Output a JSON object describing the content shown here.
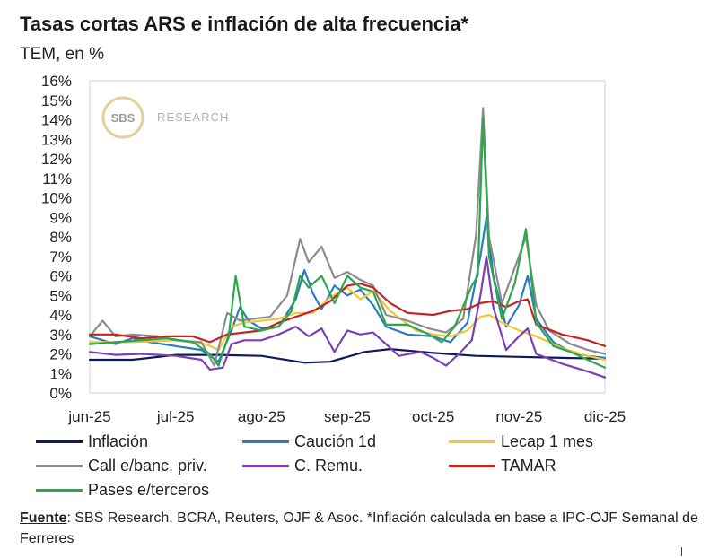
{
  "header": {
    "title": "Tasas cortas ARS e inflación de alta frecuencia*",
    "subtitle": "TEM, en %"
  },
  "watermark": {
    "logo_text": "SBS",
    "text": "RESEARCH"
  },
  "chart_data": {
    "type": "line",
    "ylim": [
      0,
      16
    ],
    "y_ticks": [
      "0%",
      "1%",
      "2%",
      "3%",
      "4%",
      "5%",
      "6%",
      "7%",
      "8%",
      "9%",
      "10%",
      "11%",
      "12%",
      "13%",
      "14%",
      "15%",
      "16%"
    ],
    "x_ticks": [
      "jun-25",
      "jul-25",
      "ago-25",
      "sep-25",
      "oct-25",
      "nov-25",
      "dic-25"
    ],
    "x_range": [
      0,
      6
    ],
    "grid": false,
    "legend_position": "bottom",
    "series": [
      {
        "name": "Inflación",
        "color": "#0d1b5e",
        "points": [
          [
            0,
            1.7
          ],
          [
            0.5,
            1.7
          ],
          [
            1,
            1.95
          ],
          [
            1.5,
            1.95
          ],
          [
            2,
            1.9
          ],
          [
            2.5,
            1.55
          ],
          [
            2.8,
            1.6
          ],
          [
            3.2,
            2.1
          ],
          [
            3.5,
            2.25
          ],
          [
            4,
            2.05
          ],
          [
            4.5,
            1.9
          ],
          [
            5,
            1.85
          ],
          [
            5.5,
            1.8
          ],
          [
            6,
            1.75
          ]
        ]
      },
      {
        "name": "Caución 1d",
        "color": "#2b7bc4",
        "points": [
          [
            0,
            2.9
          ],
          [
            0.3,
            2.5
          ],
          [
            0.5,
            2.8
          ],
          [
            0.7,
            2.6
          ],
          [
            1,
            2.4
          ],
          [
            1.3,
            2.2
          ],
          [
            1.5,
            1.6
          ],
          [
            1.65,
            3.2
          ],
          [
            1.75,
            4.4
          ],
          [
            1.85,
            3.7
          ],
          [
            2,
            3.3
          ],
          [
            2.2,
            3.4
          ],
          [
            2.4,
            4.8
          ],
          [
            2.5,
            6.3
          ],
          [
            2.6,
            5.1
          ],
          [
            2.7,
            4.3
          ],
          [
            2.85,
            5.5
          ],
          [
            3.0,
            5.0
          ],
          [
            3.15,
            5.3
          ],
          [
            3.3,
            4.5
          ],
          [
            3.45,
            3.4
          ],
          [
            3.7,
            3.0
          ],
          [
            4.0,
            2.9
          ],
          [
            4.2,
            2.6
          ],
          [
            4.4,
            3.6
          ],
          [
            4.55,
            7.0
          ],
          [
            4.62,
            9.0
          ],
          [
            4.7,
            6.0
          ],
          [
            4.85,
            3.4
          ],
          [
            5.0,
            4.5
          ],
          [
            5.1,
            6.0
          ],
          [
            5.2,
            3.8
          ],
          [
            5.4,
            2.6
          ],
          [
            5.6,
            2.1
          ],
          [
            5.8,
            1.9
          ],
          [
            6,
            1.8
          ]
        ]
      },
      {
        "name": "Lecap 1 mes",
        "color": "#f5c533",
        "points": [
          [
            0,
            2.6
          ],
          [
            0.5,
            2.6
          ],
          [
            1,
            2.7
          ],
          [
            1.35,
            2.5
          ],
          [
            1.5,
            2.2
          ],
          [
            1.65,
            3.4
          ],
          [
            1.8,
            3.6
          ],
          [
            2,
            3.7
          ],
          [
            2.2,
            3.8
          ],
          [
            2.4,
            4.1
          ],
          [
            2.6,
            4.1
          ],
          [
            2.8,
            4.9
          ],
          [
            3.0,
            5.4
          ],
          [
            3.15,
            4.8
          ],
          [
            3.3,
            5.2
          ],
          [
            3.5,
            4.2
          ],
          [
            3.8,
            3.2
          ],
          [
            4.0,
            3.0
          ],
          [
            4.2,
            2.9
          ],
          [
            4.4,
            3.2
          ],
          [
            4.55,
            3.9
          ],
          [
            4.65,
            4.0
          ],
          [
            4.8,
            3.6
          ],
          [
            5.0,
            3.2
          ],
          [
            5.2,
            2.9
          ],
          [
            5.5,
            2.3
          ],
          [
            5.8,
            1.9
          ],
          [
            6,
            1.7
          ]
        ]
      },
      {
        "name": "Call e/banc. priv.",
        "color": "#8c8c8c",
        "points": [
          [
            0,
            2.9
          ],
          [
            0.15,
            3.7
          ],
          [
            0.3,
            2.9
          ],
          [
            0.5,
            3.0
          ],
          [
            0.8,
            2.9
          ],
          [
            1,
            2.7
          ],
          [
            1.3,
            2.6
          ],
          [
            1.45,
            1.4
          ],
          [
            1.6,
            4.1
          ],
          [
            1.75,
            3.7
          ],
          [
            1.9,
            3.8
          ],
          [
            2.1,
            3.9
          ],
          [
            2.3,
            5.0
          ],
          [
            2.45,
            7.9
          ],
          [
            2.55,
            6.7
          ],
          [
            2.7,
            7.5
          ],
          [
            2.85,
            5.9
          ],
          [
            3.0,
            6.2
          ],
          [
            3.15,
            5.8
          ],
          [
            3.3,
            5.5
          ],
          [
            3.45,
            4.0
          ],
          [
            3.7,
            3.7
          ],
          [
            3.95,
            3.3
          ],
          [
            4.15,
            3.1
          ],
          [
            4.35,
            3.8
          ],
          [
            4.5,
            8.1
          ],
          [
            4.58,
            14.6
          ],
          [
            4.65,
            8.0
          ],
          [
            4.8,
            4.6
          ],
          [
            4.95,
            6.4
          ],
          [
            5.08,
            8.0
          ],
          [
            5.2,
            4.5
          ],
          [
            5.35,
            3.2
          ],
          [
            5.6,
            2.5
          ],
          [
            5.8,
            2.2
          ],
          [
            6,
            2.0
          ]
        ]
      },
      {
        "name": "C. Remu.",
        "color": "#7b3fb6",
        "points": [
          [
            0,
            2.1
          ],
          [
            0.3,
            1.95
          ],
          [
            0.6,
            2.0
          ],
          [
            1.0,
            1.9
          ],
          [
            1.3,
            1.7
          ],
          [
            1.4,
            1.2
          ],
          [
            1.55,
            1.3
          ],
          [
            1.65,
            2.5
          ],
          [
            1.8,
            2.7
          ],
          [
            2.0,
            2.7
          ],
          [
            2.2,
            3.0
          ],
          [
            2.4,
            3.4
          ],
          [
            2.55,
            2.9
          ],
          [
            2.7,
            3.3
          ],
          [
            2.85,
            2.1
          ],
          [
            3.0,
            3.2
          ],
          [
            3.15,
            3.0
          ],
          [
            3.3,
            3.1
          ],
          [
            3.45,
            2.5
          ],
          [
            3.6,
            1.9
          ],
          [
            3.85,
            2.1
          ],
          [
            4.0,
            1.8
          ],
          [
            4.15,
            1.4
          ],
          [
            4.3,
            2.0
          ],
          [
            4.45,
            2.7
          ],
          [
            4.55,
            5.0
          ],
          [
            4.62,
            7.0
          ],
          [
            4.7,
            4.4
          ],
          [
            4.85,
            2.2
          ],
          [
            5.0,
            2.9
          ],
          [
            5.1,
            3.3
          ],
          [
            5.2,
            2.0
          ],
          [
            5.5,
            1.5
          ],
          [
            5.8,
            1.1
          ],
          [
            6,
            0.8
          ]
        ]
      },
      {
        "name": "TAMAR",
        "color": "#c42323",
        "points": [
          [
            0,
            3.0
          ],
          [
            0.3,
            3.0
          ],
          [
            0.6,
            2.8
          ],
          [
            0.9,
            2.9
          ],
          [
            1.2,
            2.9
          ],
          [
            1.4,
            2.6
          ],
          [
            1.6,
            3.0
          ],
          [
            1.8,
            3.1
          ],
          [
            2.0,
            3.2
          ],
          [
            2.2,
            3.6
          ],
          [
            2.4,
            3.9
          ],
          [
            2.6,
            4.2
          ],
          [
            2.8,
            4.7
          ],
          [
            3.0,
            5.5
          ],
          [
            3.15,
            5.6
          ],
          [
            3.3,
            5.4
          ],
          [
            3.5,
            4.6
          ],
          [
            3.7,
            4.1
          ],
          [
            4.0,
            4.0
          ],
          [
            4.2,
            4.2
          ],
          [
            4.4,
            4.3
          ],
          [
            4.55,
            4.6
          ],
          [
            4.7,
            4.7
          ],
          [
            4.85,
            4.4
          ],
          [
            5.0,
            4.7
          ],
          [
            5.1,
            4.8
          ],
          [
            5.2,
            3.5
          ],
          [
            5.5,
            3.0
          ],
          [
            5.8,
            2.7
          ],
          [
            6,
            2.4
          ]
        ]
      },
      {
        "name": "Pases e/terceros",
        "color": "#2aa84a",
        "points": [
          [
            0,
            2.5
          ],
          [
            0.3,
            2.6
          ],
          [
            0.6,
            2.7
          ],
          [
            0.9,
            2.8
          ],
          [
            1.2,
            2.6
          ],
          [
            1.4,
            2.0
          ],
          [
            1.5,
            1.4
          ],
          [
            1.62,
            3.0
          ],
          [
            1.7,
            6.0
          ],
          [
            1.8,
            3.4
          ],
          [
            2.0,
            3.2
          ],
          [
            2.2,
            3.4
          ],
          [
            2.35,
            4.2
          ],
          [
            2.45,
            6.0
          ],
          [
            2.55,
            5.4
          ],
          [
            2.7,
            6.0
          ],
          [
            2.85,
            4.6
          ],
          [
            3.0,
            6.0
          ],
          [
            3.15,
            5.4
          ],
          [
            3.3,
            5.2
          ],
          [
            3.45,
            3.5
          ],
          [
            3.7,
            3.5
          ],
          [
            3.95,
            3.0
          ],
          [
            4.1,
            2.6
          ],
          [
            4.25,
            3.4
          ],
          [
            4.45,
            5.5
          ],
          [
            4.52,
            6.0
          ],
          [
            4.58,
            14.1
          ],
          [
            4.65,
            7.0
          ],
          [
            4.8,
            3.8
          ],
          [
            4.95,
            5.6
          ],
          [
            5.08,
            8.4
          ],
          [
            5.2,
            3.6
          ],
          [
            5.4,
            2.4
          ],
          [
            5.6,
            2.1
          ],
          [
            5.85,
            1.6
          ],
          [
            6,
            1.3
          ]
        ]
      }
    ]
  },
  "legend": {
    "items": [
      {
        "label": "Inflación",
        "color": "#0d1b5e"
      },
      {
        "label": "Caución 1d",
        "color": "#2b7bc4"
      },
      {
        "label": "Lecap 1 mes",
        "color": "#f5c533"
      },
      {
        "label": "Call e/banc. priv.",
        "color": "#8c8c8c"
      },
      {
        "label": "C. Remu.",
        "color": "#7b3fb6"
      },
      {
        "label": "TAMAR",
        "color": "#c42323"
      },
      {
        "label": "Pases e/terceros",
        "color": "#2aa84a"
      }
    ]
  },
  "footer": {
    "source_label": "Fuente",
    "source_text": ": SBS Research, BCRA, Reuters, OJF & Asoc. *Inflación calculada en base a IPC-OJF Semanal de Ferreres"
  }
}
